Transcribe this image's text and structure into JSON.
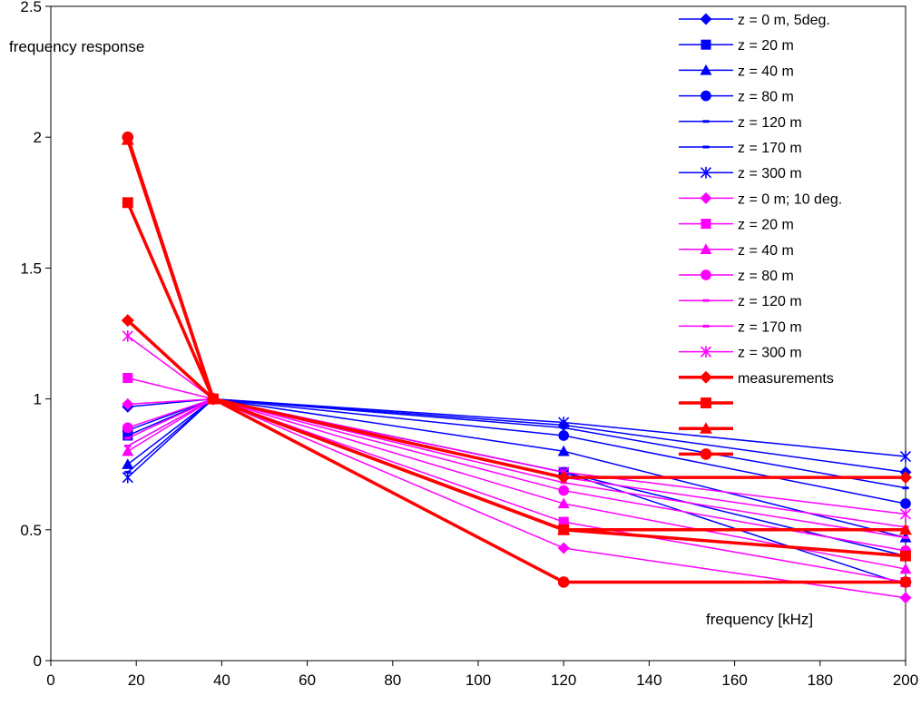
{
  "chart_data": {
    "type": "line",
    "title": "",
    "ylabel": "frequency response",
    "xlabel": "frequency  [kHz]",
    "xlim": [
      0,
      200
    ],
    "ylim": [
      0,
      2.5
    ],
    "grid": false,
    "legend_position": "top-right",
    "x_ticks": [
      0,
      20,
      40,
      60,
      80,
      100,
      120,
      140,
      160,
      180,
      200
    ],
    "y_ticks": [
      0,
      0.5,
      1,
      1.5,
      2,
      2.5
    ],
    "x_tick_labels": [
      "0",
      "20",
      "40",
      "60",
      "80",
      "100",
      "120",
      "140",
      "160",
      "180",
      "200"
    ],
    "y_tick_labels": [
      "0",
      "0.5",
      "1",
      "1.5",
      "2",
      "2.5"
    ],
    "x": [
      18,
      38,
      120,
      200
    ],
    "series": [
      {
        "name": "z = 0 m, 5deg.",
        "color": "#0000ff",
        "marker": "diamond",
        "width": 1.5,
        "values": [
          0.97,
          1.0,
          0.9,
          0.72
        ]
      },
      {
        "name": "z = 20 m",
        "color": "#0000ff",
        "marker": "square",
        "width": 1.5,
        "values": [
          0.86,
          1.0,
          0.72,
          0.4
        ]
      },
      {
        "name": "z = 40 m",
        "color": "#0000ff",
        "marker": "triangle",
        "width": 1.5,
        "values": [
          0.75,
          1.0,
          0.8,
          0.47
        ]
      },
      {
        "name": "z = 80 m",
        "color": "#0000ff",
        "marker": "circle",
        "width": 1.5,
        "values": [
          0.88,
          1.0,
          0.86,
          0.6
        ]
      },
      {
        "name": "z = 120 m",
        "color": "#0000ff",
        "marker": "dash",
        "width": 1.5,
        "values": [
          0.82,
          1.0,
          0.72,
          0.29
        ]
      },
      {
        "name": "z = 170 m",
        "color": "#0000ff",
        "marker": "dash",
        "width": 1.5,
        "values": [
          0.72,
          1.0,
          0.89,
          0.66
        ]
      },
      {
        "name": "z = 300 m",
        "color": "#0000ff",
        "marker": "asterisk",
        "width": 1.5,
        "values": [
          0.7,
          1.0,
          0.91,
          0.78
        ]
      },
      {
        "name": "z = 0 m; 10 deg.",
        "color": "#ff00ff",
        "marker": "diamond",
        "width": 1.5,
        "values": [
          0.98,
          1.0,
          0.43,
          0.24
        ]
      },
      {
        "name": "z = 20 m",
        "color": "#ff00ff",
        "marker": "square",
        "width": 1.5,
        "values": [
          1.08,
          1.0,
          0.53,
          0.3
        ]
      },
      {
        "name": "z = 40 m",
        "color": "#ff00ff",
        "marker": "triangle",
        "width": 1.5,
        "values": [
          0.8,
          1.0,
          0.6,
          0.35
        ]
      },
      {
        "name": "z = 80 m",
        "color": "#ff00ff",
        "marker": "circle",
        "width": 1.5,
        "values": [
          0.89,
          1.0,
          0.65,
          0.42
        ]
      },
      {
        "name": "z = 120 m",
        "color": "#ff00ff",
        "marker": "dash",
        "width": 1.5,
        "values": [
          0.85,
          1.0,
          0.68,
          0.47
        ]
      },
      {
        "name": "z = 170 m",
        "color": "#ff00ff",
        "marker": "dash",
        "width": 1.5,
        "values": [
          0.82,
          1.0,
          0.7,
          0.51
        ]
      },
      {
        "name": "z = 300 m",
        "color": "#ff00ff",
        "marker": "asterisk",
        "width": 1.5,
        "values": [
          1.24,
          1.0,
          0.72,
          0.56
        ]
      },
      {
        "name": "measurements",
        "color": "#ff0000",
        "marker": "diamond",
        "width": 3.5,
        "values": [
          1.3,
          1.0,
          0.7,
          0.7
        ]
      },
      {
        "name": "",
        "color": "#ff0000",
        "marker": "square",
        "width": 3.5,
        "values": [
          1.75,
          1.0,
          0.5,
          0.4
        ]
      },
      {
        "name": "",
        "color": "#ff0000",
        "marker": "triangle",
        "width": 3.5,
        "values": [
          1.99,
          1.0,
          0.5,
          0.5
        ]
      },
      {
        "name": "",
        "color": "#ff0000",
        "marker": "circle",
        "width": 3.5,
        "values": [
          2.0,
          1.0,
          0.3,
          0.3
        ]
      }
    ]
  }
}
